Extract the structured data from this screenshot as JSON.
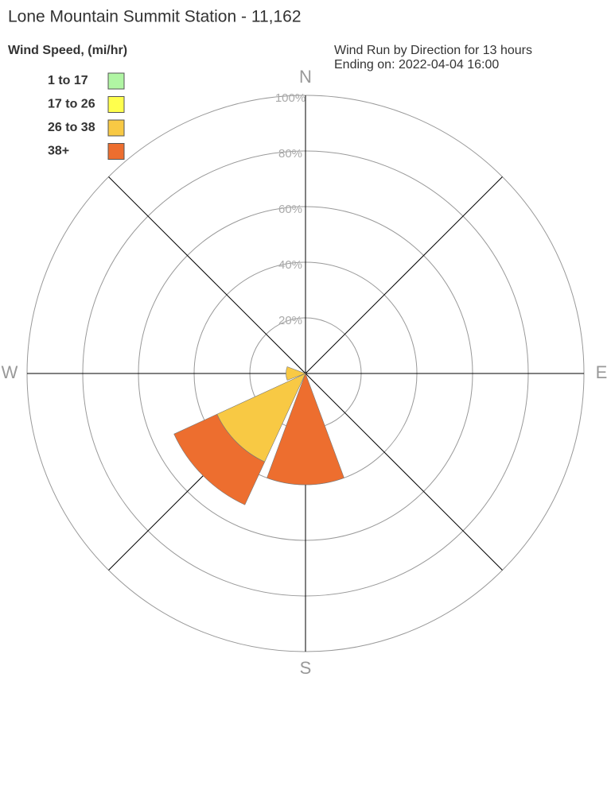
{
  "chart_data": {
    "type": "rose",
    "title": "Lone Mountain Summit Station - 11,162",
    "subtitle": [
      "Wind Run by Direction for 13 hours",
      "Ending on: 2022-04-04 16:00"
    ],
    "legend_title": "Wind Speed, (mi/hr)",
    "legend_position": "top-left",
    "x": [
      0,
      45,
      90,
      135,
      180,
      225,
      270,
      315
    ],
    "xlim": [
      0,
      360
    ],
    "xticks": [
      {
        "value": 0,
        "label": "N"
      },
      {
        "value": 90,
        "label": "E"
      },
      {
        "value": 180,
        "label": "S"
      },
      {
        "value": 270,
        "label": "W"
      }
    ],
    "ylim": [
      0,
      100
    ],
    "yticks": [
      {
        "value": 20,
        "label": "20%"
      },
      {
        "value": 40,
        "label": "40%"
      },
      {
        "value": 60,
        "label": "60%"
      },
      {
        "value": 80,
        "label": "80%"
      },
      {
        "value": 100,
        "label": "100%"
      }
    ],
    "grid": true,
    "series": [
      {
        "name": "1 to 17",
        "color": "#b0f5a3",
        "values": [
          0,
          0,
          0,
          0,
          0,
          0,
          0,
          0
        ]
      },
      {
        "name": "17 to 26",
        "color": "#ffff4d",
        "values": [
          0,
          0,
          0,
          0,
          0,
          0,
          0,
          0
        ]
      },
      {
        "name": "26 to 38",
        "color": "#f8c944",
        "values": [
          0,
          0,
          0,
          0,
          0,
          35,
          7,
          0
        ]
      },
      {
        "name": "38+",
        "color": "#ed6e2f",
        "values": [
          0,
          0,
          0,
          0,
          40,
          17,
          0,
          0
        ]
      }
    ]
  }
}
